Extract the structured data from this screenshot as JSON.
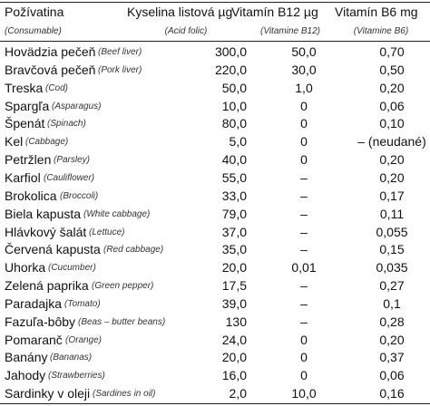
{
  "header": {
    "columns": [
      {
        "title": "Požívatina",
        "subtitle": "(Consumable)"
      },
      {
        "title": "Kyselina listová µg",
        "subtitle": "(Acid folic)"
      },
      {
        "title": "Vitamín B12 µg",
        "subtitle": "(Vitamine B12)"
      },
      {
        "title": "Vitamín B6 mg",
        "subtitle": "(Vitamine B6)"
      }
    ]
  },
  "rows": [
    {
      "name": "Hovädzia pečeň",
      "english": "(Beef liver)",
      "folic": "300,0",
      "b12": "50,0",
      "b6": "0,70"
    },
    {
      "name": "Bravčová pečeň",
      "english": "(Pork liver)",
      "folic": "220,0",
      "b12": "30,0",
      "b6": "0,50"
    },
    {
      "name": "Treska",
      "english": "(Cod)",
      "folic": "50,0",
      "b12": "1,0",
      "b6": "0,20"
    },
    {
      "name": "Spargľa",
      "english": "(Asparagus)",
      "folic": "10,0",
      "b12": "0",
      "b6": "0,06"
    },
    {
      "name": "Špenát",
      "english": "(Spinach)",
      "folic": "80,0",
      "b12": "0",
      "b6": "0,10"
    },
    {
      "name": "Kel",
      "english": "(Cabbage)",
      "folic": "5,0",
      "b12": "0",
      "b6": "– (neudané)"
    },
    {
      "name": "Petržlen",
      "english": "(Parsley)",
      "folic": "40,0",
      "b12": "0",
      "b6": "0,20"
    },
    {
      "name": "Karfiol",
      "english": "(Cauliflower)",
      "folic": "55,0",
      "b12": "–",
      "b6": "0,20"
    },
    {
      "name": "Brokolica",
      "english": "(Broccoli)",
      "folic": "33,0",
      "b12": "–",
      "b6": "0,17"
    },
    {
      "name": "Biela kapusta",
      "english": "(White cabbage)",
      "folic": "79,0",
      "b12": "–",
      "b6": "0,11"
    },
    {
      "name": "Hlávkový šalát",
      "english": "(Lettuce)",
      "folic": "37,0",
      "b12": "–",
      "b6": "0,055"
    },
    {
      "name": "Červená kapusta",
      "english": "(Red cabbage)",
      "folic": "35,0",
      "b12": "–",
      "b6": "0,15"
    },
    {
      "name": "Uhorka",
      "english": "(Cucumber)",
      "folic": "20,0",
      "b12": "0,01",
      "b6": "0,035"
    },
    {
      "name": "Zelená paprika",
      "english": "(Green pepper)",
      "folic": "17,5",
      "b12": "–",
      "b6": "0,27"
    },
    {
      "name": "Paradajka",
      "english": "(Tomato)",
      "folic": "39,0",
      "b12": "–",
      "b6": "0,1"
    },
    {
      "name": "Fazuľa-bôby",
      "english": "(Beas – butter beans)",
      "folic": "130",
      "b12": "–",
      "b6": "0,28"
    },
    {
      "name": "Pomaranč",
      "english": "(Orange)",
      "folic": "24,0",
      "b12": "0",
      "b6": "0,20"
    },
    {
      "name": "Banány",
      "english": "(Bananas)",
      "folic": "20,0",
      "b12": "0",
      "b6": "0,37"
    },
    {
      "name": "Jahody",
      "english": "(Strawberries)",
      "folic": "16,0",
      "b12": "0",
      "b6": "0,06"
    },
    {
      "name": "Sardinky v oleji",
      "english": "(Sardines in oil)",
      "folic": "2,0",
      "b12": "10,0",
      "b6": "0,16"
    }
  ]
}
